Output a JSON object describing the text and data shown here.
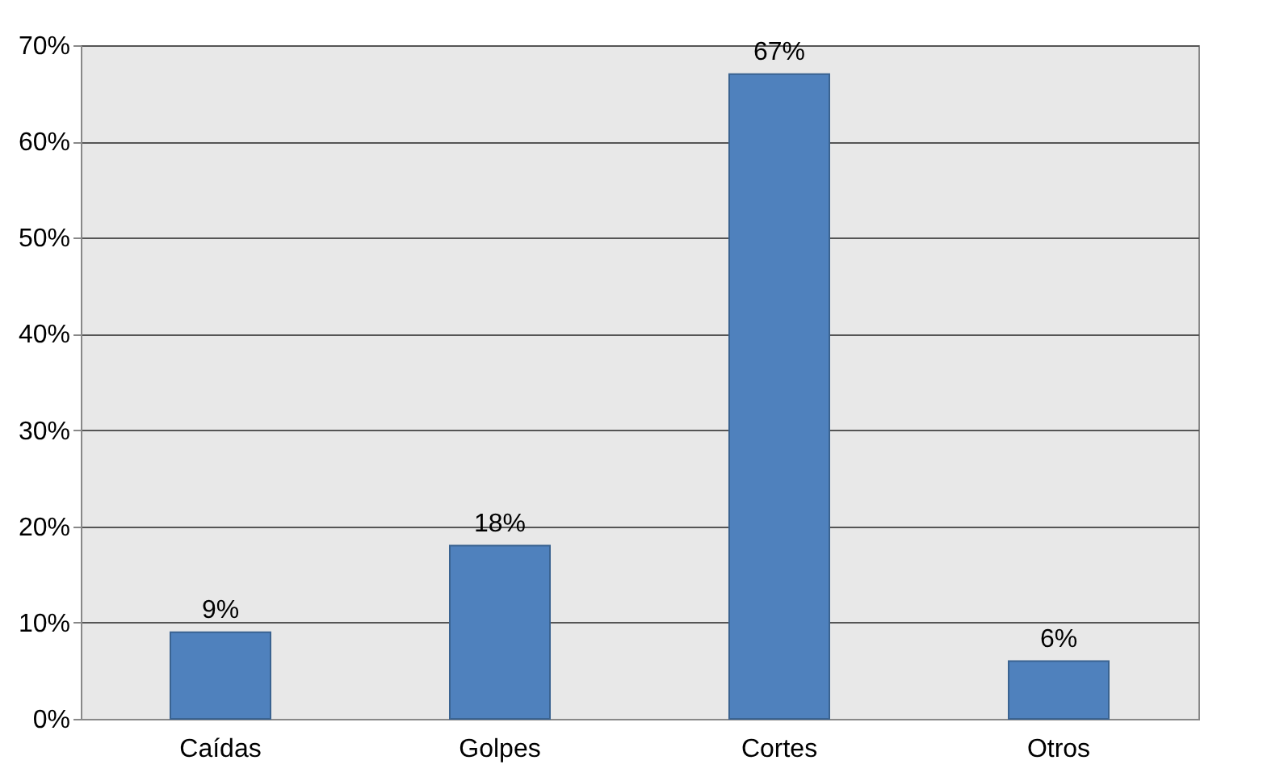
{
  "chart_data": {
    "type": "bar",
    "categories": [
      "Caídas",
      "Golpes",
      "Cortes",
      "Otros"
    ],
    "values": [
      9,
      18,
      67,
      6
    ],
    "value_labels": [
      "9%",
      "18%",
      "67%",
      "6%"
    ],
    "color": "#4f81bd",
    "ylim": [
      0,
      70
    ],
    "yticks": [
      {
        "value": 0,
        "label": "0%"
      },
      {
        "value": 10,
        "label": "10%"
      },
      {
        "value": 20,
        "label": "20%"
      },
      {
        "value": 30,
        "label": "30%"
      },
      {
        "value": 40,
        "label": "40%"
      },
      {
        "value": 50,
        "label": "50%"
      },
      {
        "value": 60,
        "label": "60%"
      },
      {
        "value": 70,
        "label": "70%"
      }
    ],
    "grid": "y"
  }
}
